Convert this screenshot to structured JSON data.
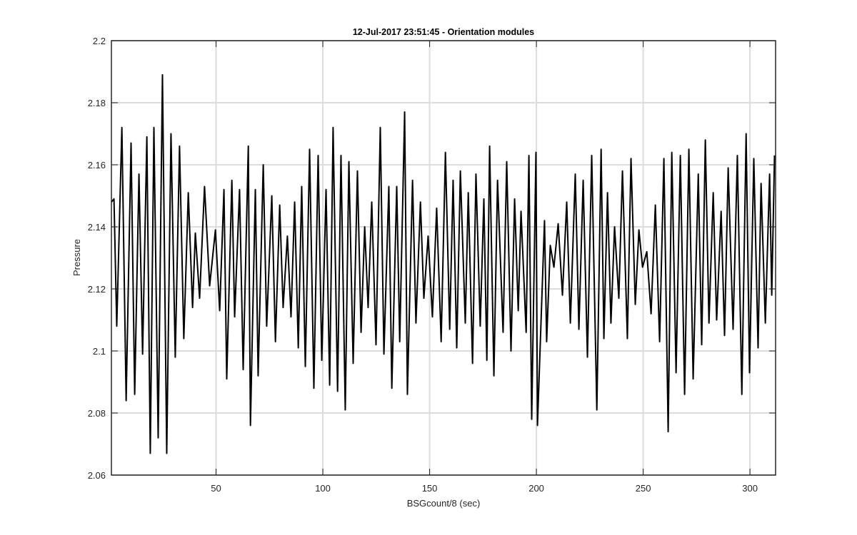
{
  "chart_data": {
    "type": "line",
    "title": "12-Jul-2017 23:51:45 - Orientation modules",
    "xlabel": "BSGcount/8 (sec)",
    "ylabel": "Pressure",
    "xlim": [
      1,
      312
    ],
    "ylim": [
      2.06,
      2.2
    ],
    "xticks": [
      50,
      100,
      150,
      200,
      250,
      300
    ],
    "yticks": [
      2.06,
      2.08,
      2.1,
      2.12,
      2.14,
      2.16,
      2.18,
      2.2
    ],
    "grid": true,
    "x": [
      1.0,
      2.2,
      3.5,
      5.9,
      7.9,
      10.2,
      11.9,
      13.9,
      15.6,
      17.6,
      19.2,
      20.9,
      22.9,
      24.9,
      26.9,
      28.9,
      30.9,
      32.9,
      34.9,
      37.0,
      39.0,
      40.3,
      42.3,
      44.6,
      47.0,
      49.7,
      51.7,
      53.7,
      55.0,
      57.4,
      58.7,
      61.0,
      62.7,
      65.1,
      66.1,
      68.4,
      69.7,
      72.1,
      73.7,
      76.1,
      77.8,
      79.8,
      81.4,
      83.4,
      85.1,
      86.8,
      88.5,
      90.1,
      91.8,
      93.8,
      95.8,
      97.8,
      99.5,
      101.5,
      103.2,
      104.8,
      106.9,
      108.5,
      110.5,
      112.2,
      114.2,
      116.2,
      117.9,
      119.6,
      121.2,
      122.9,
      124.9,
      126.9,
      128.6,
      130.9,
      132.3,
      134.6,
      136.0,
      138.3,
      139.6,
      142.0,
      143.6,
      145.7,
      147.3,
      149.3,
      151.3,
      153.3,
      155.4,
      157.4,
      159.4,
      161.0,
      162.7,
      164.4,
      166.7,
      168.1,
      170.1,
      171.7,
      173.7,
      175.4,
      176.8,
      178.1,
      180.1,
      181.8,
      184.4,
      186.1,
      188.1,
      189.8,
      191.5,
      192.8,
      195.2,
      196.5,
      197.8,
      199.8,
      200.5,
      203.8,
      204.8,
      206.5,
      208.2,
      210.2,
      212.2,
      214.2,
      215.9,
      218.2,
      219.9,
      221.9,
      223.9,
      225.9,
      228.3,
      230.3,
      231.6,
      233.3,
      234.9,
      236.6,
      238.6,
      240.3,
      242.6,
      244.3,
      246.3,
      248.0,
      249.7,
      251.7,
      253.7,
      255.7,
      257.7,
      259.7,
      261.7,
      263.4,
      265.4,
      267.4,
      269.4,
      271.4,
      273.4,
      275.8,
      277.4,
      279.1,
      280.8,
      282.8,
      284.4,
      286.5,
      288.1,
      289.8,
      292.1,
      294.1,
      296.2,
      298.2,
      299.8,
      301.8,
      303.8,
      305.2,
      307.2,
      309.2,
      310.2,
      311.5
    ],
    "series": [
      {
        "color": "#000000",
        "values": [
          2.148,
          2.149,
          2.108,
          2.172,
          2.084,
          2.167,
          2.086,
          2.157,
          2.099,
          2.169,
          2.067,
          2.172,
          2.072,
          2.189,
          2.067,
          2.17,
          2.098,
          2.166,
          2.104,
          2.151,
          2.114,
          2.138,
          2.117,
          2.153,
          2.121,
          2.139,
          2.113,
          2.152,
          2.091,
          2.155,
          2.111,
          2.152,
          2.094,
          2.166,
          2.076,
          2.152,
          2.092,
          2.16,
          2.108,
          2.15,
          2.103,
          2.147,
          2.114,
          2.137,
          2.111,
          2.148,
          2.101,
          2.153,
          2.095,
          2.165,
          2.088,
          2.163,
          2.097,
          2.152,
          2.089,
          2.172,
          2.087,
          2.163,
          2.081,
          2.161,
          2.096,
          2.158,
          2.106,
          2.14,
          2.114,
          2.148,
          2.102,
          2.172,
          2.099,
          2.153,
          2.088,
          2.153,
          2.103,
          2.177,
          2.086,
          2.155,
          2.109,
          2.148,
          2.117,
          2.137,
          2.111,
          2.146,
          2.103,
          2.164,
          2.107,
          2.155,
          2.101,
          2.158,
          2.109,
          2.151,
          2.096,
          2.157,
          2.108,
          2.149,
          2.097,
          2.166,
          2.092,
          2.155,
          2.106,
          2.161,
          2.1,
          2.149,
          2.113,
          2.145,
          2.106,
          2.163,
          2.078,
          2.164,
          2.076,
          2.142,
          2.103,
          2.134,
          2.127,
          2.141,
          2.118,
          2.148,
          2.109,
          2.157,
          2.107,
          2.155,
          2.098,
          2.163,
          2.081,
          2.165,
          2.104,
          2.151,
          2.109,
          2.14,
          2.117,
          2.158,
          2.104,
          2.162,
          2.115,
          2.139,
          2.127,
          2.132,
          2.112,
          2.147,
          2.103,
          2.162,
          2.074,
          2.164,
          2.093,
          2.163,
          2.086,
          2.165,
          2.091,
          2.157,
          2.102,
          2.168,
          2.109,
          2.151,
          2.11,
          2.145,
          2.105,
          2.159,
          2.107,
          2.163,
          2.086,
          2.17,
          2.093,
          2.162,
          2.101,
          2.154,
          2.109,
          2.157,
          2.118,
          2.163
        ]
      }
    ]
  }
}
